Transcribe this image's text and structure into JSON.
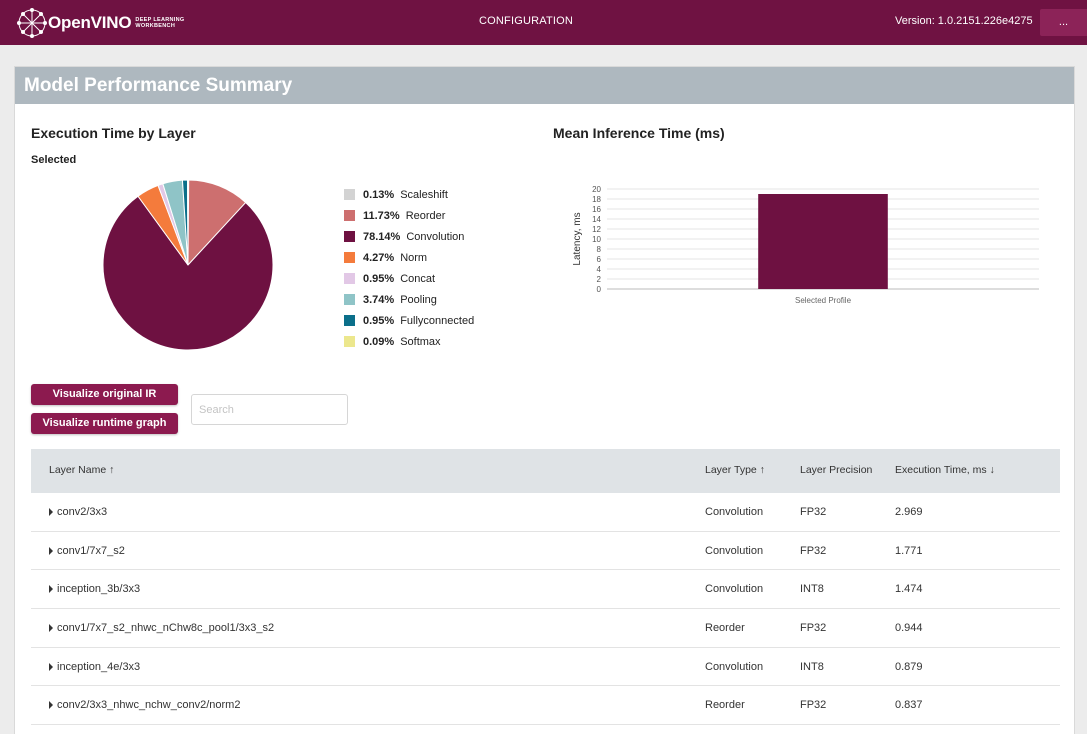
{
  "header": {
    "logo_text": "OpenVINO",
    "logo_sub_1": "DEEP LEARNING",
    "logo_sub_2": "WORKBENCH",
    "nav_label": "CONFIGURATION",
    "version": "Version: 1.0.2151.226e4275",
    "more_label": "..."
  },
  "panel": {
    "title": "Model Performance Summary"
  },
  "execution": {
    "title": "Execution Time by Layer",
    "subtitle": "Selected",
    "legend": [
      {
        "pct": "0.13%",
        "label": "Scaleshift",
        "color": "#d3d3d3"
      },
      {
        "pct": "11.73%",
        "label": "Reorder",
        "color": "#cd6f6f"
      },
      {
        "pct": "78.14%",
        "label": "Convolution",
        "color": "#6e1141"
      },
      {
        "pct": "4.27%",
        "label": "Norm",
        "color": "#f47b3c"
      },
      {
        "pct": "0.95%",
        "label": "Concat",
        "color": "#e2c8e6"
      },
      {
        "pct": "3.74%",
        "label": "Pooling",
        "color": "#8fc4c7"
      },
      {
        "pct": "0.95%",
        "label": "Fullyconnected",
        "color": "#0b6f8a"
      },
      {
        "pct": "0.09%",
        "label": "Softmax",
        "color": "#ece78d"
      }
    ]
  },
  "inference": {
    "title": "Mean Inference Time (ms)"
  },
  "chart_data": {
    "type": "bar",
    "categories": [
      "Selected Profile"
    ],
    "values": [
      19
    ],
    "ylabel": "Latency, ms",
    "ylim": [
      0,
      20
    ],
    "yticks": [
      "0",
      "2",
      "4",
      "6",
      "8",
      "10",
      "12",
      "14",
      "16",
      "18",
      "20"
    ],
    "grid": true,
    "bar_color": "#6e1141"
  },
  "buttons": {
    "visualize_ir": "Visualize original IR",
    "visualize_runtime": "Visualize runtime graph"
  },
  "search": {
    "placeholder": "Search",
    "value": ""
  },
  "table": {
    "headers": {
      "name": "Layer Name ↑",
      "type": "Layer Type ↑",
      "precision": "Layer Precision",
      "time": "Execution Time, ms ↓"
    },
    "rows": [
      {
        "name": "conv2/3x3",
        "type": "Convolution",
        "precision": "FP32",
        "time": "2.969"
      },
      {
        "name": "conv1/7x7_s2",
        "type": "Convolution",
        "precision": "FP32",
        "time": "1.771"
      },
      {
        "name": "inception_3b/3x3",
        "type": "Convolution",
        "precision": "INT8",
        "time": "1.474"
      },
      {
        "name": "conv1/7x7_s2_nhwc_nChw8c_pool1/3x3_s2",
        "type": "Reorder",
        "precision": "FP32",
        "time": "0.944"
      },
      {
        "name": "inception_4e/3x3",
        "type": "Convolution",
        "precision": "INT8",
        "time": "0.879"
      },
      {
        "name": "conv2/3x3_nhwc_nchw_conv2/norm2",
        "type": "Reorder",
        "precision": "FP32",
        "time": "0.837"
      }
    ]
  }
}
